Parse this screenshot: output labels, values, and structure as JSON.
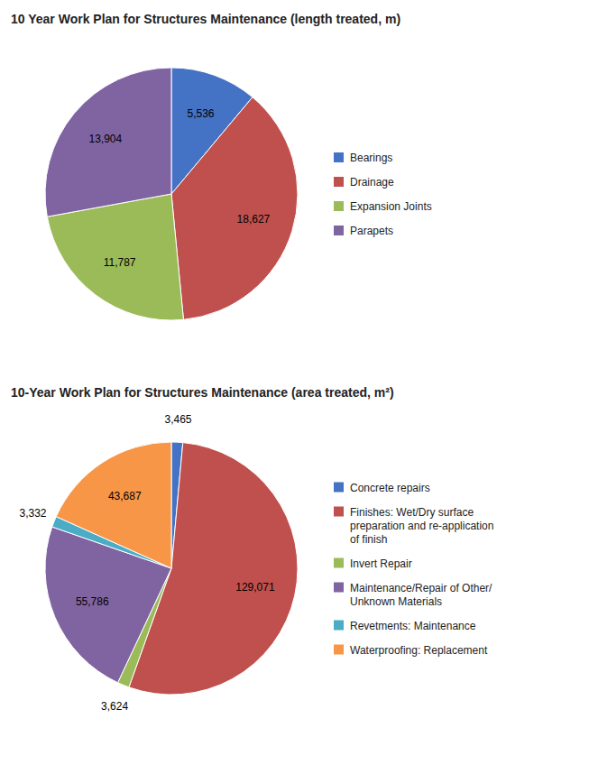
{
  "chart_data": [
    {
      "type": "pie",
      "title": "10 Year Work Plan for Structures Maintenance (length treated, m)",
      "categories": [
        "Bearings",
        "Drainage",
        "Expansion Joints",
        "Parapets"
      ],
      "values": [
        5536,
        18627,
        11787,
        13904
      ],
      "value_labels": [
        "5,536",
        "18,627",
        "11,787",
        "13,904"
      ],
      "colors": [
        "#4472C4",
        "#C0504D",
        "#9BBB59",
        "#8064A2"
      ],
      "data_labels": true,
      "legend": "right"
    },
    {
      "type": "pie",
      "title": "10-Year Work Plan for Structures Maintenance (area treated, m²)",
      "categories": [
        "Concrete repairs",
        "Finishes: Wet/Dry surface\npreparation and re-application\nof finish",
        "Invert Repair",
        "Maintenance/Repair of Other/\nUnknown Materials",
        "Revetments: Maintenance",
        "Waterproofing: Replacement"
      ],
      "values": [
        3465,
        129071,
        3624,
        55786,
        3332,
        43687
      ],
      "value_labels": [
        "3,465",
        "129,071",
        "3,624",
        "55,786",
        "3,332",
        "43,687"
      ],
      "colors": [
        "#4472C4",
        "#C0504D",
        "#9BBB59",
        "#8064A2",
        "#4BACC6",
        "#F79646"
      ],
      "data_labels": true,
      "legend": "right"
    }
  ]
}
